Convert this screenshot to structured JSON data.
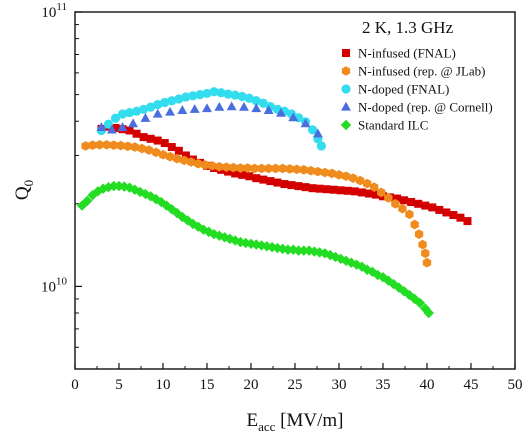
{
  "chart_data": {
    "type": "scatter",
    "annotation": "2 K, 1.3 GHz",
    "xlabel": {
      "main": "E",
      "sub": "acc",
      "rest": " [MV/m]"
    },
    "ylabel": {
      "main": "Q",
      "sub": "0"
    },
    "xlim": [
      0,
      50
    ],
    "ylim": [
      5000000000.0,
      100000000000.0
    ],
    "yscale": "log",
    "x_ticks": [
      "0",
      "5",
      "10",
      "15",
      "20",
      "25",
      "30",
      "35",
      "40",
      "45",
      "50"
    ],
    "y_ticks": [
      {
        "value": 10000000000.0,
        "base": "10",
        "exp": "10"
      },
      {
        "value": 100000000000.0,
        "base": "10",
        "exp": "11"
      }
    ],
    "legend_position": "top-right",
    "series": [
      {
        "name": "N-infused (FNAL)",
        "marker": "square",
        "color": "#d40000",
        "points": [
          [
            3.0,
            37500000000.0
          ],
          [
            3.8,
            38200000000.0
          ],
          [
            4.6,
            37800000000.0
          ],
          [
            5.4,
            37400000000.0
          ],
          [
            6.2,
            37000000000.0
          ],
          [
            7.0,
            36000000000.0
          ],
          [
            7.8,
            35000000000.0
          ],
          [
            8.6,
            34500000000.0
          ],
          [
            9.4,
            34000000000.0
          ],
          [
            10.2,
            33300000000.0
          ],
          [
            11.0,
            32200000000.0
          ],
          [
            11.8,
            31200000000.0
          ],
          [
            12.6,
            30000000000.0
          ],
          [
            13.4,
            29000000000.0
          ],
          [
            14.2,
            28200000000.0
          ],
          [
            15.0,
            27500000000.0
          ],
          [
            15.8,
            27000000000.0
          ],
          [
            16.6,
            26600000000.0
          ],
          [
            17.4,
            26200000000.0
          ],
          [
            18.2,
            25800000000.0
          ],
          [
            19.0,
            25500000000.0
          ],
          [
            19.8,
            25200000000.0
          ],
          [
            20.6,
            24800000000.0
          ],
          [
            21.4,
            24500000000.0
          ],
          [
            22.2,
            24200000000.0
          ],
          [
            23.0,
            23900000000.0
          ],
          [
            23.8,
            23600000000.0
          ],
          [
            24.6,
            23400000000.0
          ],
          [
            25.4,
            23200000000.0
          ],
          [
            26.2,
            23000000000.0
          ],
          [
            27.0,
            22800000000.0
          ],
          [
            27.8,
            22700000000.0
          ],
          [
            28.6,
            22600000000.0
          ],
          [
            29.4,
            22500000000.0
          ],
          [
            30.2,
            22400000000.0
          ],
          [
            31.0,
            22300000000.0
          ],
          [
            31.8,
            22200000000.0
          ],
          [
            32.6,
            22000000000.0
          ],
          [
            33.4,
            21800000000.0
          ],
          [
            34.2,
            21600000000.0
          ],
          [
            35.0,
            21300000000.0
          ],
          [
            35.8,
            21100000000.0
          ],
          [
            36.6,
            20900000000.0
          ],
          [
            37.4,
            20600000000.0
          ],
          [
            38.2,
            20300000000.0
          ],
          [
            39.0,
            20000000000.0
          ],
          [
            39.8,
            19700000000.0
          ],
          [
            40.6,
            19400000000.0
          ],
          [
            41.4,
            19000000000.0
          ],
          [
            42.2,
            18600000000.0
          ],
          [
            43.0,
            18200000000.0
          ],
          [
            43.8,
            17800000000.0
          ],
          [
            44.6,
            17300000000.0
          ]
        ]
      },
      {
        "name": "N-infused (rep. @ JLab)",
        "marker": "hexagon",
        "color": "#f08c1e",
        "points": [
          [
            1.2,
            32500000000.0
          ],
          [
            2.0,
            32700000000.0
          ],
          [
            2.8,
            32800000000.0
          ],
          [
            3.6,
            32800000000.0
          ],
          [
            4.4,
            32700000000.0
          ],
          [
            5.2,
            32600000000.0
          ],
          [
            6.0,
            32400000000.0
          ],
          [
            6.8,
            32200000000.0
          ],
          [
            7.6,
            31800000000.0
          ],
          [
            8.4,
            31400000000.0
          ],
          [
            9.2,
            30800000000.0
          ],
          [
            10.0,
            30200000000.0
          ],
          [
            10.8,
            29700000000.0
          ],
          [
            11.6,
            29200000000.0
          ],
          [
            12.4,
            28800000000.0
          ],
          [
            13.2,
            28400000000.0
          ],
          [
            14.0,
            28000000000.0
          ],
          [
            14.8,
            27700000000.0
          ],
          [
            15.6,
            27500000000.0
          ],
          [
            16.4,
            27300000000.0
          ],
          [
            17.2,
            27200000000.0
          ],
          [
            18.0,
            27100000000.0
          ],
          [
            18.8,
            27000000000.0
          ],
          [
            19.6,
            27000000000.0
          ],
          [
            20.4,
            26900000000.0
          ],
          [
            21.2,
            26900000000.0
          ],
          [
            22.0,
            26900000000.0
          ],
          [
            22.8,
            26900000000.0
          ],
          [
            23.6,
            26900000000.0
          ],
          [
            24.4,
            26800000000.0
          ],
          [
            25.2,
            26700000000.0
          ],
          [
            26.0,
            26600000000.0
          ],
          [
            26.8,
            26400000000.0
          ],
          [
            27.6,
            26200000000.0
          ],
          [
            28.4,
            26000000000.0
          ],
          [
            29.2,
            25800000000.0
          ],
          [
            30.0,
            25500000000.0
          ],
          [
            30.8,
            25200000000.0
          ],
          [
            31.6,
            24800000000.0
          ],
          [
            32.4,
            24300000000.0
          ],
          [
            33.2,
            23700000000.0
          ],
          [
            34.0,
            23000000000.0
          ],
          [
            34.8,
            22000000000.0
          ],
          [
            35.6,
            21000000000.0
          ],
          [
            36.4,
            20000000000.0
          ],
          [
            37.2,
            19200000000.0
          ],
          [
            38.0,
            18300000000.0
          ],
          [
            38.6,
            16800000000.0
          ],
          [
            39.1,
            15500000000.0
          ],
          [
            39.5,
            14200000000.0
          ],
          [
            39.8,
            13200000000.0
          ],
          [
            40.0,
            12200000000.0
          ]
        ]
      },
      {
        "name": "N-doped (FNAL)",
        "marker": "circle",
        "color": "#33ddee",
        "points": [
          [
            3.0,
            37000000000.0
          ],
          [
            3.8,
            39000000000.0
          ],
          [
            4.6,
            41000000000.0
          ],
          [
            5.4,
            42500000000.0
          ],
          [
            6.2,
            43000000000.0
          ],
          [
            7.0,
            43500000000.0
          ],
          [
            7.8,
            44200000000.0
          ],
          [
            8.6,
            45000000000.0
          ],
          [
            9.4,
            46000000000.0
          ],
          [
            10.2,
            46800000000.0
          ],
          [
            11.0,
            47500000000.0
          ],
          [
            11.8,
            48200000000.0
          ],
          [
            12.6,
            49000000000.0
          ],
          [
            13.4,
            49500000000.0
          ],
          [
            14.2,
            50000000000.0
          ],
          [
            15.0,
            50500000000.0
          ],
          [
            15.8,
            51200000000.0
          ],
          [
            16.6,
            50800000000.0
          ],
          [
            17.4,
            50200000000.0
          ],
          [
            18.2,
            49800000000.0
          ],
          [
            19.0,
            49200000000.0
          ],
          [
            19.8,
            48500000000.0
          ],
          [
            20.6,
            47500000000.0
          ],
          [
            21.4,
            46500000000.0
          ],
          [
            22.2,
            45200000000.0
          ],
          [
            23.0,
            44200000000.0
          ],
          [
            23.8,
            43500000000.0
          ],
          [
            24.6,
            42500000000.0
          ],
          [
            25.4,
            41200000000.0
          ],
          [
            26.2,
            39800000000.0
          ],
          [
            27.0,
            37200000000.0
          ],
          [
            27.6,
            34500000000.0
          ],
          [
            28.0,
            32500000000.0
          ]
        ]
      },
      {
        "name": "N-doped (rep. @ Cornell)",
        "marker": "triangle",
        "color": "#4a6ee0",
        "points": [
          [
            3.0,
            38000000000.0
          ],
          [
            4.2,
            37200000000.0
          ],
          [
            5.4,
            38000000000.0
          ],
          [
            6.6,
            39200000000.0
          ],
          [
            8.0,
            41000000000.0
          ],
          [
            9.4,
            42500000000.0
          ],
          [
            10.8,
            43200000000.0
          ],
          [
            12.2,
            43800000000.0
          ],
          [
            13.6,
            44200000000.0
          ],
          [
            15.0,
            44500000000.0
          ],
          [
            16.4,
            45000000000.0
          ],
          [
            17.8,
            45200000000.0
          ],
          [
            19.2,
            45000000000.0
          ],
          [
            20.6,
            44500000000.0
          ],
          [
            22.0,
            43800000000.0
          ],
          [
            23.4,
            42800000000.0
          ],
          [
            24.8,
            41200000000.0
          ],
          [
            26.2,
            39200000000.0
          ],
          [
            27.6,
            36000000000.0
          ]
        ]
      },
      {
        "name": "Standard ILC",
        "marker": "diamond",
        "color": "#22dd22",
        "points": [
          [
            0.8,
            19700000000.0
          ],
          [
            1.4,
            20500000000.0
          ],
          [
            2.0,
            21500000000.0
          ],
          [
            2.6,
            22200000000.0
          ],
          [
            3.2,
            22700000000.0
          ],
          [
            3.8,
            23000000000.0
          ],
          [
            4.4,
            23200000000.0
          ],
          [
            5.0,
            23200000000.0
          ],
          [
            5.6,
            23100000000.0
          ],
          [
            6.2,
            22900000000.0
          ],
          [
            6.8,
            22500000000.0
          ],
          [
            7.4,
            22100000000.0
          ],
          [
            8.0,
            21700000000.0
          ],
          [
            8.6,
            21300000000.0
          ],
          [
            9.2,
            20800000000.0
          ],
          [
            9.8,
            20300000000.0
          ],
          [
            10.4,
            19700000000.0
          ],
          [
            11.0,
            19100000000.0
          ],
          [
            11.6,
            18500000000.0
          ],
          [
            12.2,
            17900000000.0
          ],
          [
            12.8,
            17400000000.0
          ],
          [
            13.4,
            16900000000.0
          ],
          [
            14.0,
            16500000000.0
          ],
          [
            14.6,
            16100000000.0
          ],
          [
            15.2,
            15800000000.0
          ],
          [
            15.8,
            15500000000.0
          ],
          [
            16.4,
            15300000000.0
          ],
          [
            17.0,
            15100000000.0
          ],
          [
            17.6,
            14900000000.0
          ],
          [
            18.2,
            14700000000.0
          ],
          [
            18.8,
            14500000000.0
          ],
          [
            19.4,
            14400000000.0
          ],
          [
            20.0,
            14300000000.0
          ],
          [
            20.6,
            14200000000.0
          ],
          [
            21.2,
            14100000000.0
          ],
          [
            21.8,
            14000000000.0
          ],
          [
            22.4,
            13900000000.0
          ],
          [
            23.0,
            13800000000.0
          ],
          [
            23.6,
            13700000000.0
          ],
          [
            24.2,
            13600000000.0
          ],
          [
            24.8,
            13600000000.0
          ],
          [
            25.4,
            13500000000.0
          ],
          [
            26.0,
            13500000000.0
          ],
          [
            26.6,
            13500000000.0
          ],
          [
            27.2,
            13400000000.0
          ],
          [
            27.8,
            13300000000.0
          ],
          [
            28.4,
            13200000000.0
          ],
          [
            29.0,
            13000000000.0
          ],
          [
            29.6,
            12800000000.0
          ],
          [
            30.2,
            12600000000.0
          ],
          [
            30.8,
            12400000000.0
          ],
          [
            31.4,
            12200000000.0
          ],
          [
            32.0,
            12000000000.0
          ],
          [
            32.6,
            11800000000.0
          ],
          [
            33.2,
            11500000000.0
          ],
          [
            33.8,
            11300000000.0
          ],
          [
            34.4,
            11000000000.0
          ],
          [
            35.0,
            10800000000.0
          ],
          [
            35.6,
            10500000000.0
          ],
          [
            36.2,
            10200000000.0
          ],
          [
            36.8,
            9900000000.0
          ],
          [
            37.4,
            9600000000.0
          ],
          [
            38.0,
            9300000000.0
          ],
          [
            38.6,
            9000000000.0
          ],
          [
            39.2,
            8700000000.0
          ],
          [
            39.8,
            8300000000.0
          ],
          [
            40.2,
            8000000000.0
          ]
        ]
      }
    ]
  }
}
